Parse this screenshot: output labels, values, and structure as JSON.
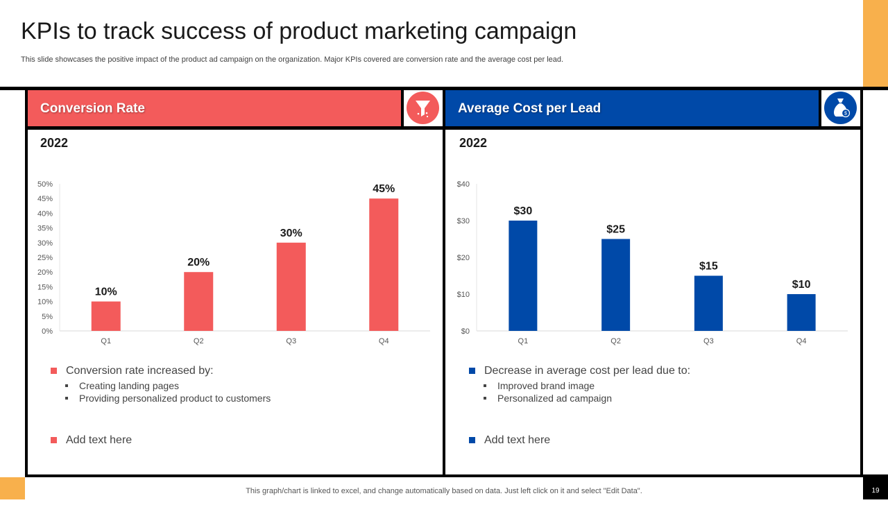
{
  "slide": {
    "title": "KPIs to track success of product marketing campaign",
    "subtitle": "This slide showcases the positive impact of the product ad campaign on the organization. Major KPIs covered are conversion rate and the average cost per lead.",
    "footer": "This graph/chart is linked to excel,  and change automatically based on data. Just left click on it and select \"Edit Data\".",
    "page_number": "19"
  },
  "colors": {
    "red": "#F35B5B",
    "blue": "#0049A8",
    "orange": "#F8B04C"
  },
  "panels": [
    {
      "header": "Conversion Rate",
      "icon": "funnel-icon",
      "year": "2022",
      "bullet_main": "Conversion rate increased by:",
      "sub_bullets": [
        "Creating landing pages",
        "Providing personalized product to  customers"
      ],
      "add_text": "Add text here"
    },
    {
      "header": "Average Cost per Lead",
      "icon": "money-bag-icon",
      "year": "2022",
      "bullet_main": "Decrease in average cost per lead due to:",
      "sub_bullets": [
        "Improved brand image",
        "Personalized ad campaign"
      ],
      "add_text": "Add text here"
    }
  ],
  "chart_data": [
    {
      "type": "bar",
      "categories": [
        "Q1",
        "Q2",
        "Q3",
        "Q4"
      ],
      "values": [
        10,
        20,
        30,
        45
      ],
      "data_labels": [
        "10%",
        "20%",
        "30%",
        "45%"
      ],
      "yticks": [
        "0%",
        "5%",
        "10%",
        "15%",
        "20%",
        "25%",
        "30%",
        "35%",
        "40%",
        "45%",
        "50%"
      ],
      "ylim": [
        0,
        50
      ],
      "color": "#F35B5B",
      "grid": false
    },
    {
      "type": "bar",
      "categories": [
        "Q1",
        "Q2",
        "Q3",
        "Q4"
      ],
      "values": [
        30,
        25,
        15,
        10
      ],
      "data_labels": [
        "$30",
        "$25",
        "$15",
        "$10"
      ],
      "yticks": [
        "$0",
        "$10",
        "$20",
        "$30",
        "$40"
      ],
      "ylim": [
        0,
        40
      ],
      "color": "#0049A8",
      "grid": false
    }
  ]
}
